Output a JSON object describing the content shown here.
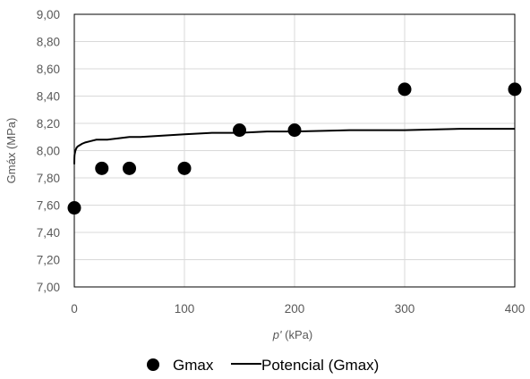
{
  "chart_data": {
    "type": "scatter",
    "xlabel_italic": "p'",
    "xlabel_unit": " (kPa)",
    "ylabel": "Gmáx (MPa)",
    "xlim": [
      0,
      400
    ],
    "ylim": [
      7.0,
      9.0
    ],
    "x_ticks": [
      0,
      100,
      200,
      300,
      400
    ],
    "y_ticks": [
      7.0,
      7.2,
      7.4,
      7.6,
      7.8,
      8.0,
      8.2,
      8.4,
      8.6,
      8.8,
      9.0
    ],
    "x_tick_labels": [
      "0",
      "100",
      "200",
      "300",
      "400"
    ],
    "y_tick_labels": [
      "7,00",
      "7,20",
      "7,40",
      "7,60",
      "7,80",
      "8,00",
      "8,20",
      "8,40",
      "8,60",
      "8,80",
      "9,00"
    ],
    "grid": true,
    "legend_position": "bottom",
    "series": [
      {
        "name": "Gmax",
        "kind": "scatter",
        "color": "#000000",
        "x": [
          0,
          25,
          50,
          100,
          150,
          200,
          300,
          400
        ],
        "y": [
          7.58,
          7.87,
          7.87,
          7.87,
          8.15,
          8.15,
          8.45,
          8.45
        ]
      },
      {
        "name": "Potencial (Gmax)",
        "kind": "line",
        "color": "#000000",
        "x": [
          0.01,
          0.05,
          0.1,
          0.25,
          0.5,
          1,
          2,
          3,
          5,
          7,
          10,
          15,
          20,
          30,
          40,
          50,
          60,
          80,
          100,
          125,
          150,
          175,
          200,
          250,
          300,
          350,
          400
        ],
        "y": [
          7.9,
          7.93,
          7.95,
          7.97,
          7.98,
          8.0,
          8.02,
          8.03,
          8.04,
          8.05,
          8.06,
          8.07,
          8.08,
          8.08,
          8.09,
          8.1,
          8.1,
          8.11,
          8.12,
          8.13,
          8.13,
          8.14,
          8.14,
          8.15,
          8.15,
          8.16,
          8.16
        ]
      }
    ]
  }
}
